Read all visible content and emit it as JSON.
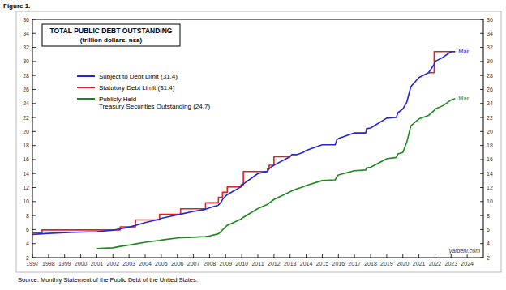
{
  "chart_data": {
    "type": "line",
    "figure_label": "Figure 1.",
    "title": "TOTAL PUBLIC DEBT OUTSTANDING",
    "subtitle": "(trillion dollars, nsa)",
    "source": "Source: Monthly Statement of the Public Debt of the United States.",
    "credit": "yardeni.com",
    "x": [
      1997.0,
      1997.6,
      1998.0,
      1999.0,
      2000.0,
      2001.0,
      2002.0,
      2002.45,
      2003.0,
      2003.4,
      2004.0,
      2004.9,
      2005.0,
      2006.0,
      2006.2,
      2007.0,
      2007.75,
      2008.0,
      2008.55,
      2008.75,
      2008.8,
      2009.0,
      2009.1,
      2009.95,
      2010.0,
      2010.1,
      2011.0,
      2011.6,
      2011.7,
      2012.0,
      2013.0,
      2013.1,
      2013.4,
      2013.8,
      2014.0,
      2015.0,
      2015.8,
      2015.9,
      2016.0,
      2017.0,
      2017.7,
      2017.75,
      2018.0,
      2019.0,
      2019.6,
      2019.7,
      2020.0,
      2020.25,
      2020.5,
      2021.0,
      2021.6,
      2021.95,
      2022.0,
      2022.5,
      2023.0,
      2023.25
    ],
    "xlim": [
      1997,
      2025
    ],
    "xticks": [
      1997,
      1998,
      1999,
      2000,
      2001,
      2002,
      2003,
      2004,
      2005,
      2006,
      2007,
      2008,
      2009,
      2010,
      2011,
      2012,
      2013,
      2014,
      2015,
      2016,
      2017,
      2018,
      2019,
      2020,
      2021,
      2022,
      2023,
      2024
    ],
    "ylim": [
      2,
      36
    ],
    "yticks": [
      2,
      4,
      6,
      8,
      10,
      12,
      14,
      16,
      18,
      20,
      22,
      24,
      26,
      28,
      30,
      32,
      34,
      36
    ],
    "grid": false,
    "legend": "upper left",
    "series": [
      {
        "name": "Subject to Debt Limit (31.4)",
        "color": "#2424d8",
        "line_style": "solid",
        "values": [
          5.3,
          5.4,
          5.45,
          5.55,
          5.65,
          5.7,
          5.9,
          6.1,
          6.35,
          6.6,
          7.0,
          7.5,
          7.6,
          8.1,
          8.2,
          8.6,
          8.9,
          9.1,
          9.5,
          10.0,
          10.3,
          10.8,
          11.0,
          12.1,
          12.3,
          12.5,
          14.0,
          14.3,
          14.7,
          15.2,
          16.4,
          16.7,
          16.7,
          17.0,
          17.3,
          18.1,
          18.1,
          18.8,
          19.0,
          19.8,
          19.8,
          20.4,
          20.5,
          21.9,
          22.0,
          22.7,
          23.2,
          24.2,
          26.4,
          27.7,
          28.4,
          29.6,
          30.0,
          30.6,
          31.4,
          31.4
        ]
      },
      {
        "name": "Statutory Debt Limit (31.4)",
        "color": "#e02020",
        "line_style": "step",
        "values": [
          5.5,
          5.95,
          5.95,
          5.95,
          5.95,
          5.95,
          5.95,
          6.4,
          6.4,
          7.38,
          7.38,
          8.18,
          8.18,
          8.18,
          8.97,
          8.97,
          9.82,
          9.82,
          10.62,
          10.62,
          11.32,
          11.32,
          12.1,
          12.39,
          12.39,
          14.29,
          14.29,
          14.69,
          15.19,
          16.39,
          16.39,
          null,
          null,
          null,
          null,
          null,
          null,
          null,
          null,
          null,
          null,
          null,
          null,
          null,
          null,
          null,
          null,
          null,
          null,
          null,
          28.4,
          31.4,
          31.4,
          31.4,
          31.4,
          31.4
        ]
      },
      {
        "name": "Publicly Held Treasury Securities Outstanding (24.7)",
        "color": "#1a8a1a",
        "line_style": "solid",
        "values": [
          null,
          null,
          null,
          null,
          null,
          3.3,
          3.4,
          3.6,
          3.8,
          3.95,
          4.2,
          4.45,
          4.5,
          4.8,
          4.85,
          4.9,
          5.0,
          5.1,
          5.4,
          5.8,
          5.95,
          6.4,
          6.6,
          7.5,
          7.6,
          7.75,
          9.0,
          9.6,
          9.8,
          10.3,
          11.4,
          11.5,
          11.8,
          12.1,
          12.3,
          13.0,
          13.1,
          13.5,
          13.8,
          14.4,
          14.5,
          14.8,
          14.9,
          16.1,
          16.3,
          16.8,
          17.0,
          18.5,
          20.8,
          21.8,
          22.3,
          23.0,
          23.2,
          23.7,
          24.5,
          24.7
        ]
      }
    ],
    "annotations": [
      {
        "text": "Mar",
        "x": 2023.25,
        "y": 31.4
      },
      {
        "text": "Mar",
        "x": 2023.25,
        "y": 24.7
      }
    ]
  }
}
